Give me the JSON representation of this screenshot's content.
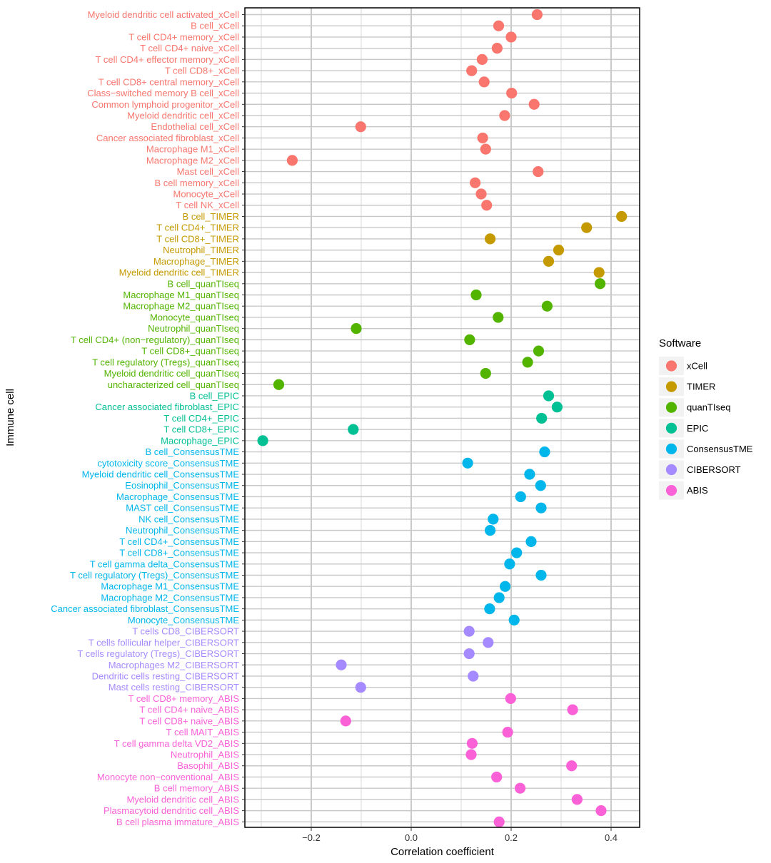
{
  "chart_data": {
    "type": "scatter",
    "title": "",
    "xlabel": "Correlation coefficient",
    "ylabel": "Immune cell",
    "xlim": [
      -0.33,
      0.45
    ],
    "xticks": [
      -0.2,
      0.0,
      0.2,
      0.4
    ],
    "xtick_labels": [
      "−0.2",
      "0.0",
      "0.2",
      "0.4"
    ],
    "grid": true,
    "legend": {
      "title": "Software",
      "position": "right",
      "entries": [
        {
          "name": "xCell",
          "color": "#F8766D"
        },
        {
          "name": "TIMER",
          "color": "#C49A00"
        },
        {
          "name": "quanTIseq",
          "color": "#53B400"
        },
        {
          "name": "EPIC",
          "color": "#00C094"
        },
        {
          "name": "ConsensusTME",
          "color": "#00B6EB"
        },
        {
          "name": "CIBERSORT",
          "color": "#A58AFF"
        },
        {
          "name": "ABIS",
          "color": "#FB61D7"
        }
      ]
    },
    "points": [
      {
        "label": "Myeloid dendritic cell activated_xCell",
        "software": "xCell",
        "value": 0.252
      },
      {
        "label": "B cell_xCell",
        "software": "xCell",
        "value": 0.175
      },
      {
        "label": "T cell CD4+ memory_xCell",
        "software": "xCell",
        "value": 0.2
      },
      {
        "label": "T cell CD4+ naive_xCell",
        "software": "xCell",
        "value": 0.172
      },
      {
        "label": "T cell CD4+ effector memory_xCell",
        "software": "xCell",
        "value": 0.142
      },
      {
        "label": "T cell CD8+_xCell",
        "software": "xCell",
        "value": 0.121
      },
      {
        "label": "T cell CD8+ central memory_xCell",
        "software": "xCell",
        "value": 0.146
      },
      {
        "label": "Class−switched memory B cell_xCell",
        "software": "xCell",
        "value": 0.201
      },
      {
        "label": "Common lymphoid progenitor_xCell",
        "software": "xCell",
        "value": 0.246
      },
      {
        "label": "Myeloid dendritic cell_xCell",
        "software": "xCell",
        "value": 0.187
      },
      {
        "label": "Endothelial cell_xCell",
        "software": "xCell",
        "value": -0.101
      },
      {
        "label": "Cancer associated fibroblast_xCell",
        "software": "xCell",
        "value": 0.143
      },
      {
        "label": "Macrophage M1_xCell",
        "software": "xCell",
        "value": 0.149
      },
      {
        "label": "Macrophage M2_xCell",
        "software": "xCell",
        "value": -0.238
      },
      {
        "label": "Mast cell_xCell",
        "software": "xCell",
        "value": 0.254
      },
      {
        "label": "B cell memory_xCell",
        "software": "xCell",
        "value": 0.128
      },
      {
        "label": "Monocyte_xCell",
        "software": "xCell",
        "value": 0.14
      },
      {
        "label": "T cell NK_xCell",
        "software": "xCell",
        "value": 0.151
      },
      {
        "label": "B cell_TIMER",
        "software": "TIMER",
        "value": 0.421
      },
      {
        "label": "T cell CD4+_TIMER",
        "software": "TIMER",
        "value": 0.351
      },
      {
        "label": "T cell CD8+_TIMER",
        "software": "TIMER",
        "value": 0.158
      },
      {
        "label": "Neutrophil_TIMER",
        "software": "TIMER",
        "value": 0.295
      },
      {
        "label": "Macrophage_TIMER",
        "software": "TIMER",
        "value": 0.275
      },
      {
        "label": "Myeloid dendritic cell_TIMER",
        "software": "TIMER",
        "value": 0.376
      },
      {
        "label": "B cell_quanTIseq",
        "software": "quanTIseq",
        "value": 0.378
      },
      {
        "label": "Macrophage M1_quanTIseq",
        "software": "quanTIseq",
        "value": 0.13
      },
      {
        "label": "Macrophage M2_quanTIseq",
        "software": "quanTIseq",
        "value": 0.272
      },
      {
        "label": "Monocyte_quanTIseq",
        "software": "quanTIseq",
        "value": 0.174
      },
      {
        "label": "Neutrophil_quanTIseq",
        "software": "quanTIseq",
        "value": -0.11
      },
      {
        "label": "T cell CD4+ (non−regulatory)_quanTIseq",
        "software": "quanTIseq",
        "value": 0.117
      },
      {
        "label": "T cell CD8+_quanTIseq",
        "software": "quanTIseq",
        "value": 0.255
      },
      {
        "label": "T cell regulatory (Tregs)_quanTIseq",
        "software": "quanTIseq",
        "value": 0.233
      },
      {
        "label": "Myeloid dendritic cell_quanTIseq",
        "software": "quanTIseq",
        "value": 0.149
      },
      {
        "label": "uncharacterized cell_quanTIseq",
        "software": "quanTIseq",
        "value": -0.265
      },
      {
        "label": "B cell_EPIC",
        "software": "EPIC",
        "value": 0.275
      },
      {
        "label": "Cancer associated fibroblast_EPIC",
        "software": "EPIC",
        "value": 0.292
      },
      {
        "label": "T cell CD4+_EPIC",
        "software": "EPIC",
        "value": 0.261
      },
      {
        "label": "T cell CD8+_EPIC",
        "software": "EPIC",
        "value": -0.116
      },
      {
        "label": "Macrophage_EPIC",
        "software": "EPIC",
        "value": -0.297
      },
      {
        "label": "B cell_ConsensusTME",
        "software": "ConsensusTME",
        "value": 0.267
      },
      {
        "label": "cytotoxicity score_ConsensusTME",
        "software": "ConsensusTME",
        "value": 0.113
      },
      {
        "label": "Myeloid dendritic cell_ConsensusTME",
        "software": "ConsensusTME",
        "value": 0.237
      },
      {
        "label": "Eosinophil_ConsensusTME",
        "software": "ConsensusTME",
        "value": 0.259
      },
      {
        "label": "Macrophage_ConsensusTME",
        "software": "ConsensusTME",
        "value": 0.219
      },
      {
        "label": "MAST cell_ConsensusTME",
        "software": "ConsensusTME",
        "value": 0.26
      },
      {
        "label": "NK cell_ConsensusTME",
        "software": "ConsensusTME",
        "value": 0.164
      },
      {
        "label": "Neutrophil_ConsensusTME",
        "software": "ConsensusTME",
        "value": 0.158
      },
      {
        "label": "T cell CD4+_ConsensusTME",
        "software": "ConsensusTME",
        "value": 0.24
      },
      {
        "label": "T cell CD8+_ConsensusTME",
        "software": "ConsensusTME",
        "value": 0.211
      },
      {
        "label": "T cell gamma delta_ConsensusTME",
        "software": "ConsensusTME",
        "value": 0.197
      },
      {
        "label": "T cell regulatory (Tregs)_ConsensusTME",
        "software": "ConsensusTME",
        "value": 0.26
      },
      {
        "label": "Macrophage M1_ConsensusTME",
        "software": "ConsensusTME",
        "value": 0.188
      },
      {
        "label": "Macrophage M2_ConsensusTME",
        "software": "ConsensusTME",
        "value": 0.176
      },
      {
        "label": "Cancer associated fibroblast_ConsensusTME",
        "software": "ConsensusTME",
        "value": 0.157
      },
      {
        "label": "Monocyte_ConsensusTME",
        "software": "ConsensusTME",
        "value": 0.206
      },
      {
        "label": "T cells CD8_CIBERSORT",
        "software": "CIBERSORT",
        "value": 0.116
      },
      {
        "label": "T cells follicular helper_CIBERSORT",
        "software": "CIBERSORT",
        "value": 0.154
      },
      {
        "label": "T cells regulatory (Tregs)_CIBERSORT",
        "software": "CIBERSORT",
        "value": 0.116
      },
      {
        "label": "Macrophages M2_CIBERSORT",
        "software": "CIBERSORT",
        "value": -0.14
      },
      {
        "label": "Dendritic cells resting_CIBERSORT",
        "software": "CIBERSORT",
        "value": 0.124
      },
      {
        "label": "Mast cells resting_CIBERSORT",
        "software": "CIBERSORT",
        "value": -0.101
      },
      {
        "label": "T cell CD8+ memory_ABIS",
        "software": "ABIS",
        "value": 0.199
      },
      {
        "label": "T cell CD4+ naive_ABIS",
        "software": "ABIS",
        "value": 0.323
      },
      {
        "label": "T cell CD8+ naive_ABIS",
        "software": "ABIS",
        "value": -0.131
      },
      {
        "label": "T cell MAIT_ABIS",
        "software": "ABIS",
        "value": 0.193
      },
      {
        "label": "T cell gamma delta VD2_ABIS",
        "software": "ABIS",
        "value": 0.122
      },
      {
        "label": "Neutrophil_ABIS",
        "software": "ABIS",
        "value": 0.12
      },
      {
        "label": "Basophil_ABIS",
        "software": "ABIS",
        "value": 0.321
      },
      {
        "label": "Monocyte non−conventional_ABIS",
        "software": "ABIS",
        "value": 0.171
      },
      {
        "label": "B cell memory_ABIS",
        "software": "ABIS",
        "value": 0.218
      },
      {
        "label": "Myeloid dendritic cell_ABIS",
        "software": "ABIS",
        "value": 0.332
      },
      {
        "label": "Plasmacytoid dendritic cell_ABIS",
        "software": "ABIS",
        "value": 0.38
      },
      {
        "label": "B cell plasma immature_ABIS",
        "software": "ABIS",
        "value": 0.176
      }
    ]
  }
}
